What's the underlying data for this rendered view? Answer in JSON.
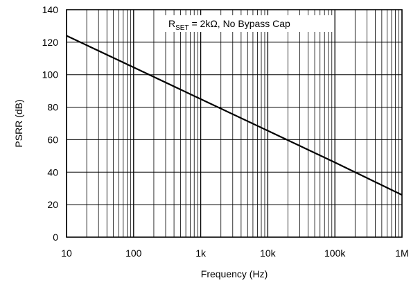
{
  "chart_data": {
    "type": "line",
    "xlabel": "Frequency (Hz)",
    "ylabel": "PSRR (dB)",
    "x_scale": "log",
    "xlim": [
      10,
      1000000
    ],
    "ylim": [
      0,
      140
    ],
    "x_ticks": [
      10,
      100,
      1000,
      10000,
      100000,
      1000000
    ],
    "x_tick_labels": [
      "10",
      "100",
      "1k",
      "10k",
      "100k",
      "1M"
    ],
    "y_ticks": [
      0,
      20,
      40,
      60,
      80,
      100,
      120,
      140
    ],
    "y_tick_labels": [
      "0",
      "20",
      "40",
      "60",
      "80",
      "100",
      "120",
      "140"
    ],
    "grid": true,
    "annotation": {
      "prefix": "R",
      "subscript": "SET",
      "suffix": " = 2kΩ, No Bypass Cap"
    },
    "series": [
      {
        "color": "#000000",
        "x": [
          10,
          100,
          1000,
          10000,
          100000,
          1000000
        ],
        "y": [
          124,
          104.5,
          85,
          65.5,
          46,
          26
        ]
      }
    ]
  }
}
